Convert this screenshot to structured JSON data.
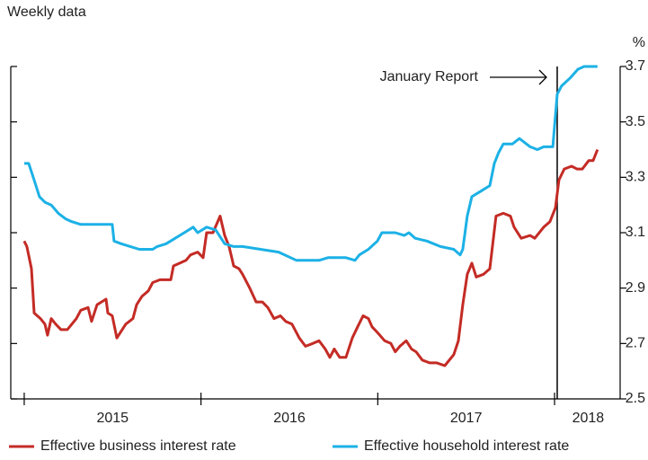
{
  "chart_data": {
    "type": "line",
    "subtitle": "Weekly data",
    "y_unit": "%",
    "xlim": [
      2014.924,
      2018.371
    ],
    "ylim": [
      2.5,
      3.7
    ],
    "yticks": [
      2.5,
      2.7,
      2.9,
      3.1,
      3.3,
      3.5,
      3.7
    ],
    "xticks": [
      {
        "value": 2015.5,
        "label": "2015"
      },
      {
        "value": 2016.5,
        "label": "2016"
      },
      {
        "value": 2017.5,
        "label": "2017"
      },
      {
        "value": 2018.19,
        "label": "2018"
      }
    ],
    "x_year_ticks": [
      2015,
      2016,
      2017,
      2018
    ],
    "annotation": {
      "text": "January Report",
      "x": 2018.015
    },
    "series": [
      {
        "name": "Effective business interest rate",
        "color": "#c42b25",
        "x": [
          2015.0,
          2015.015,
          2015.041,
          2015.056,
          2015.092,
          2015.117,
          2015.132,
          2015.153,
          2015.178,
          2015.208,
          2015.244,
          2015.269,
          2015.295,
          2015.32,
          2015.361,
          2015.381,
          2015.412,
          2015.437,
          2015.463,
          2015.473,
          2015.498,
          2015.524,
          2015.574,
          2015.615,
          2015.636,
          2015.666,
          2015.702,
          2015.727,
          2015.768,
          2015.793,
          2015.829,
          2015.844,
          2015.88,
          2015.915,
          2015.941,
          2015.981,
          2016.012,
          2016.032,
          2016.068,
          2016.108,
          2016.134,
          2016.159,
          2016.185,
          2016.215,
          2016.235,
          2016.276,
          2016.312,
          2016.347,
          2016.378,
          2016.413,
          2016.449,
          2016.479,
          2016.515,
          2016.556,
          2016.591,
          2016.632,
          2016.668,
          2016.703,
          2016.729,
          2016.754,
          2016.785,
          2016.82,
          2016.856,
          2016.886,
          2016.917,
          2016.947,
          2016.968,
          2016.998,
          2017.039,
          2017.074,
          2017.099,
          2017.125,
          2017.161,
          2017.191,
          2017.217,
          2017.252,
          2017.293,
          2017.334,
          2017.379,
          2017.43,
          2017.456,
          2017.481,
          2017.506,
          2017.532,
          2017.557,
          2017.598,
          2017.634,
          2017.669,
          2017.71,
          2017.75,
          2017.771,
          2017.811,
          2017.862,
          2017.888,
          2017.939,
          2017.974,
          2018.005,
          2018.025,
          2018.055,
          2018.096,
          2018.127,
          2018.157,
          2018.193,
          2018.218,
          2018.243
        ],
        "values": [
          3.07,
          3.05,
          2.97,
          2.81,
          2.79,
          2.77,
          2.73,
          2.79,
          2.77,
          2.75,
          2.75,
          2.77,
          2.79,
          2.82,
          2.83,
          2.78,
          2.84,
          2.85,
          2.86,
          2.81,
          2.8,
          2.72,
          2.77,
          2.79,
          2.84,
          2.87,
          2.89,
          2.92,
          2.93,
          2.93,
          2.93,
          2.98,
          2.99,
          3.0,
          3.02,
          3.03,
          3.01,
          3.1,
          3.1,
          3.16,
          3.09,
          3.05,
          2.98,
          2.97,
          2.95,
          2.9,
          2.85,
          2.85,
          2.83,
          2.79,
          2.8,
          2.78,
          2.77,
          2.72,
          2.69,
          2.7,
          2.71,
          2.68,
          2.65,
          2.68,
          2.65,
          2.65,
          2.72,
          2.76,
          2.8,
          2.79,
          2.76,
          2.74,
          2.71,
          2.7,
          2.67,
          2.69,
          2.71,
          2.68,
          2.67,
          2.64,
          2.63,
          2.63,
          2.62,
          2.66,
          2.71,
          2.84,
          2.95,
          2.99,
          2.94,
          2.95,
          2.97,
          3.16,
          3.17,
          3.16,
          3.12,
          3.08,
          3.09,
          3.08,
          3.12,
          3.14,
          3.19,
          3.29,
          3.33,
          3.34,
          3.33,
          3.33,
          3.36,
          3.36,
          3.4
        ]
      },
      {
        "name": "Effective household interest rate",
        "color": "#1cb1e6",
        "x": [
          2015.0,
          2015.025,
          2015.051,
          2015.086,
          2015.117,
          2015.153,
          2015.193,
          2015.234,
          2015.269,
          2015.32,
          2015.498,
          2015.508,
          2015.549,
          2015.6,
          2015.651,
          2015.727,
          2015.752,
          2015.803,
          2015.854,
          2015.905,
          2015.956,
          2015.981,
          2016.032,
          2016.083,
          2016.134,
          2016.185,
          2016.235,
          2016.337,
          2016.439,
          2016.54,
          2016.668,
          2016.718,
          2016.82,
          2016.871,
          2016.896,
          2016.947,
          2016.998,
          2017.023,
          2017.099,
          2017.15,
          2017.176,
          2017.212,
          2017.278,
          2017.354,
          2017.43,
          2017.466,
          2017.481,
          2017.506,
          2017.532,
          2017.583,
          2017.634,
          2017.659,
          2017.684,
          2017.71,
          2017.761,
          2017.801,
          2017.862,
          2017.903,
          2017.939,
          2017.99,
          2018.015,
          2018.04,
          2018.091,
          2018.132,
          2018.167,
          2018.243
        ],
        "values": [
          3.35,
          3.35,
          3.3,
          3.23,
          3.21,
          3.2,
          3.17,
          3.15,
          3.14,
          3.13,
          3.13,
          3.07,
          3.06,
          3.05,
          3.04,
          3.04,
          3.05,
          3.06,
          3.08,
          3.1,
          3.12,
          3.1,
          3.12,
          3.11,
          3.06,
          3.05,
          3.05,
          3.04,
          3.03,
          3.0,
          3.0,
          3.01,
          3.01,
          3.0,
          3.02,
          3.04,
          3.07,
          3.1,
          3.1,
          3.09,
          3.1,
          3.08,
          3.07,
          3.05,
          3.04,
          3.02,
          3.04,
          3.16,
          3.23,
          3.25,
          3.27,
          3.35,
          3.39,
          3.42,
          3.42,
          3.44,
          3.41,
          3.4,
          3.41,
          3.41,
          3.6,
          3.63,
          3.66,
          3.69,
          3.7,
          3.7
        ]
      }
    ]
  }
}
